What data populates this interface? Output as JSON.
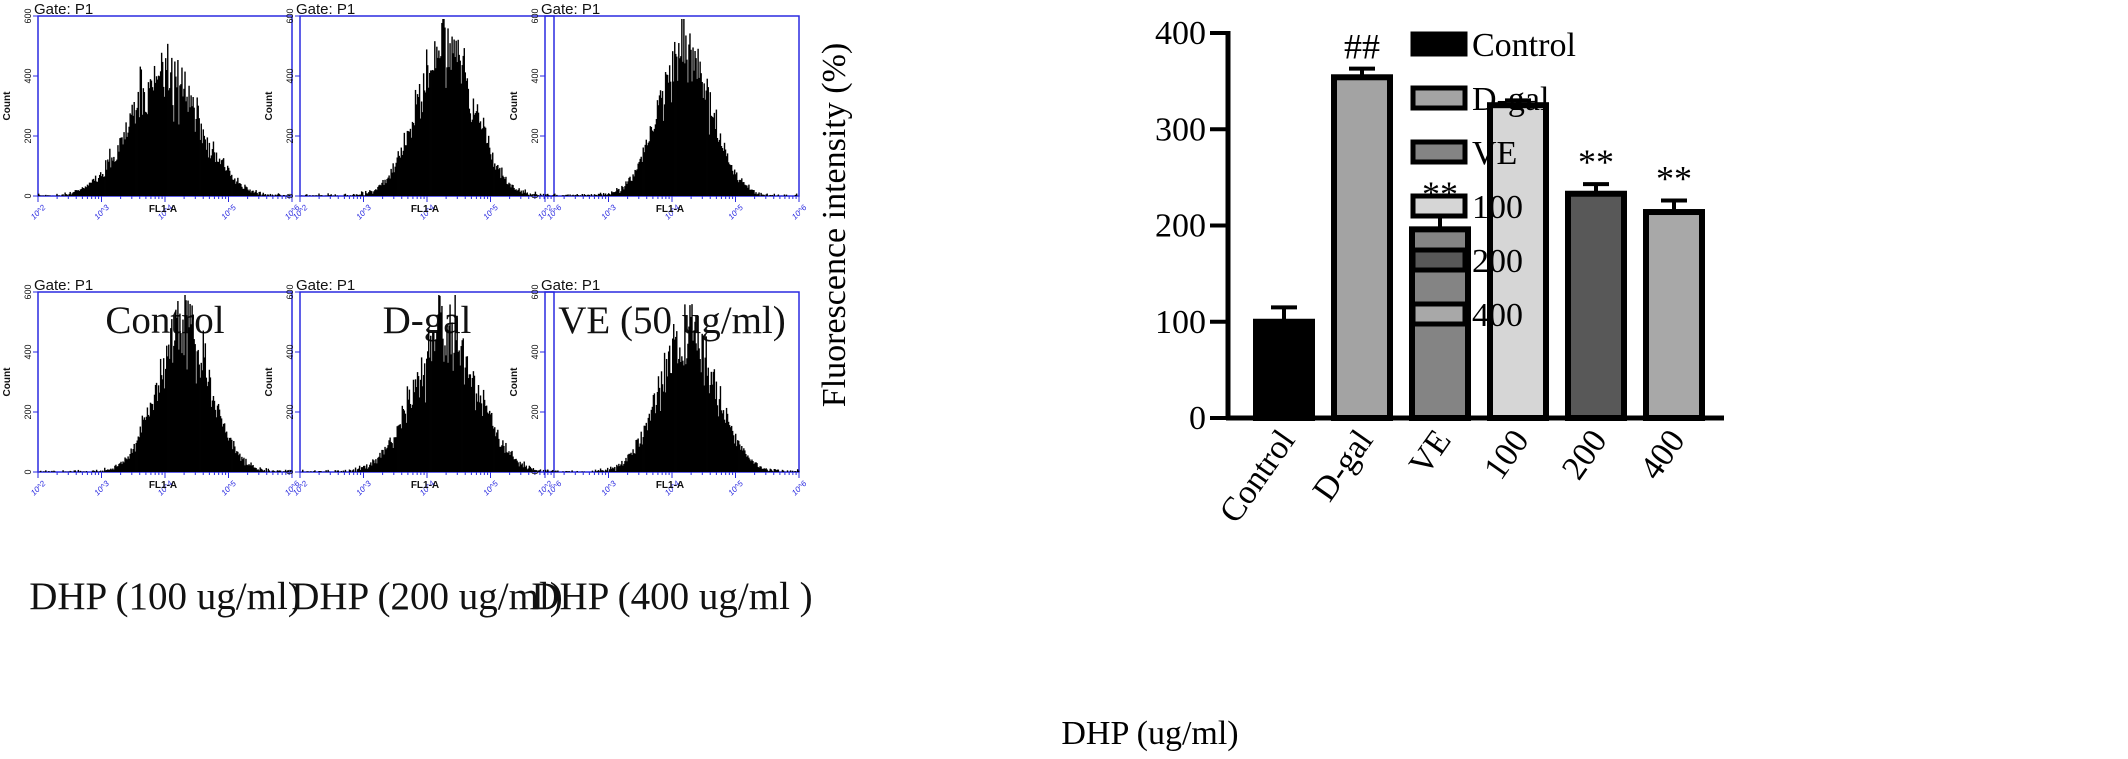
{
  "histograms": [
    {
      "gate": "Gate: P1",
      "caption": "Control",
      "xlabel": "FL1-A",
      "ylabel": "Count",
      "yticks": [
        "0",
        "200",
        "400",
        "600"
      ],
      "xticks": [
        "10^2",
        "10^3",
        "10^4",
        "10^5",
        "10^6"
      ],
      "peak_log10": 4.0,
      "peak_count": 400,
      "width_log10": 0.55
    },
    {
      "gate": "Gate: P1",
      "caption": "D-gal",
      "xlabel": "FL1-A",
      "ylabel": "Count",
      "yticks": [
        "0",
        "200",
        "400",
        "600"
      ],
      "xticks": [
        "10^2",
        "10^3",
        "10^4",
        "10^5",
        "10^6"
      ],
      "peak_log10": 4.3,
      "peak_count": 490,
      "width_log10": 0.45
    },
    {
      "gate": "Gate: P1",
      "caption": "VE (50  ug/ml)",
      "xlabel": "FL1-A",
      "ylabel": "Count",
      "yticks": [
        "0",
        "200",
        "400",
        "600"
      ],
      "xticks": [
        "10^2",
        "10^3",
        "10^4",
        "10^5",
        "10^6"
      ],
      "peak_log10": 4.2,
      "peak_count": 470,
      "width_log10": 0.42
    },
    {
      "gate": "Gate: P1",
      "caption": "DHP (100  ug/ml)",
      "xlabel": "FL1-A",
      "ylabel": "Count",
      "yticks": [
        "0",
        "200",
        "400",
        "600"
      ],
      "xticks": [
        "10^2",
        "10^3",
        "10^4",
        "10^5",
        "10^6"
      ],
      "peak_log10": 4.3,
      "peak_count": 480,
      "width_log10": 0.42
    },
    {
      "gate": "Gate: P1",
      "caption": "DHP (200  ug/ml)",
      "xlabel": "FL1-A",
      "ylabel": "Count",
      "yticks": [
        "0",
        "200",
        "400",
        "600"
      ],
      "xticks": [
        "10^2",
        "10^3",
        "10^4",
        "10^5",
        "10^6"
      ],
      "peak_log10": 4.3,
      "peak_count": 460,
      "width_log10": 0.5
    },
    {
      "gate": "Gate: P1",
      "caption": "DHP (400  ug/ml )",
      "xlabel": "FL1-A",
      "ylabel": "Count",
      "yticks": [
        "0",
        "200",
        "400",
        "600"
      ],
      "xticks": [
        "10^2",
        "10^3",
        "10^4",
        "10^5",
        "10^6"
      ],
      "peak_log10": 4.25,
      "peak_count": 450,
      "width_log10": 0.45
    }
  ],
  "chart_data": {
    "type": "bar",
    "title": "",
    "ylabel": "Fluorescence intensity (%)",
    "xlabel": "DHP (ug/ml)",
    "ylim": [
      0,
      400
    ],
    "yticks": [
      0,
      100,
      200,
      300,
      400
    ],
    "categories": [
      "Control",
      "D-gal",
      "VE",
      "100",
      "200",
      "400"
    ],
    "values": [
      100,
      354,
      196,
      325,
      233,
      214
    ],
    "errors": [
      15,
      9,
      14,
      5,
      10,
      12
    ],
    "annotations": [
      "",
      "##",
      "**",
      "",
      "**",
      "**"
    ],
    "colors": [
      "#000000",
      "#a3a3a3",
      "#848484",
      "#d6d6d6",
      "#585858",
      "#a8a8a8"
    ],
    "legend": [
      "Control",
      "D-gal",
      "VE",
      "100",
      "200",
      "400"
    ],
    "legend_position": "right",
    "grid": false
  }
}
